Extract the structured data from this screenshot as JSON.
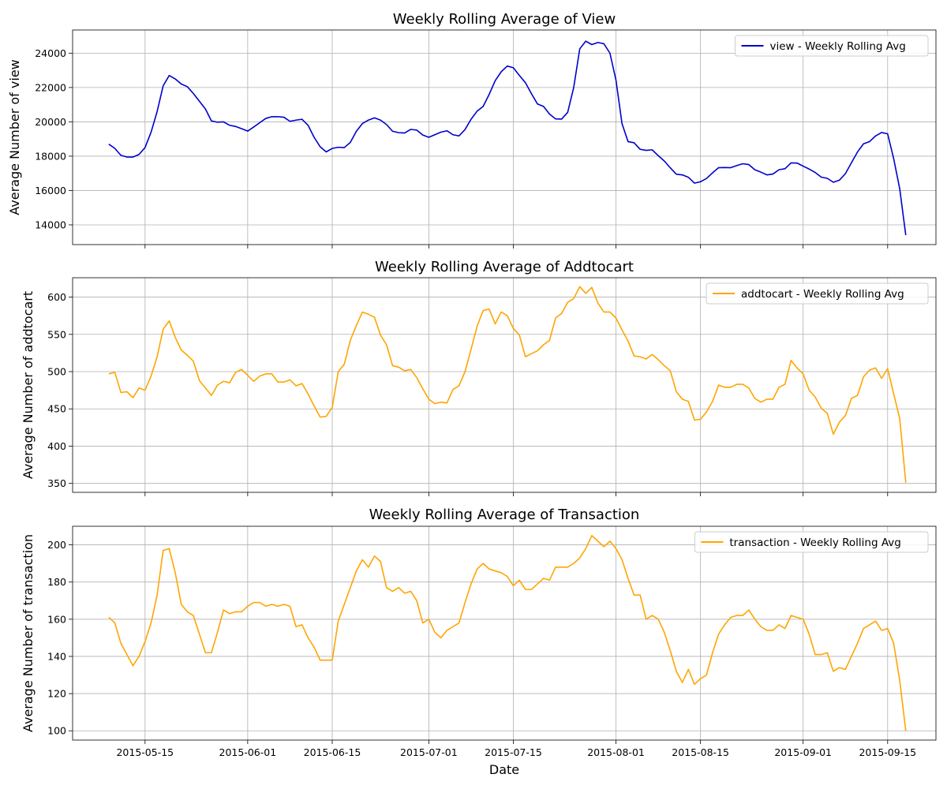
{
  "chart_data": [
    {
      "type": "line",
      "title": "Weekly Rolling Average of View",
      "xlabel": "",
      "ylabel": "Average Number of view",
      "xlim": [
        "2015-05-03",
        "2015-09-23"
      ],
      "ylim": [
        12850,
        25350
      ],
      "yticks": [
        14000,
        16000,
        18000,
        20000,
        22000,
        24000
      ],
      "grid": true,
      "legend_position": "top-right",
      "series": [
        {
          "name": "view - Weekly Rolling Avg",
          "color": "#0000cd",
          "start_date": "2015-05-09",
          "values": [
            18700,
            18450,
            18050,
            17950,
            17950,
            18100,
            18500,
            19400,
            20600,
            22100,
            22700,
            22500,
            22200,
            22050,
            21650,
            21200,
            20750,
            20050,
            19980,
            20000,
            19800,
            19730,
            19600,
            19460,
            19700,
            19950,
            20200,
            20300,
            20300,
            20270,
            20030,
            20100,
            20150,
            19800,
            19100,
            18550,
            18250,
            18450,
            18520,
            18500,
            18800,
            19450,
            19900,
            20100,
            20230,
            20100,
            19840,
            19450,
            19370,
            19350,
            19560,
            19520,
            19230,
            19100,
            19250,
            19400,
            19480,
            19250,
            19180,
            19550,
            20150,
            20620,
            20900,
            21600,
            22400,
            22920,
            23250,
            23150,
            22700,
            22280,
            21640,
            21040,
            20900,
            20450,
            20170,
            20160,
            20550,
            22000,
            24250,
            24700,
            24500,
            24620,
            24550,
            24000,
            22430,
            19900,
            18850,
            18780,
            18400,
            18340,
            18370,
            18030,
            17720,
            17320,
            16950,
            16910,
            16770,
            16430,
            16510,
            16700,
            17030,
            17330,
            17340,
            17330,
            17450,
            17560,
            17510,
            17210,
            17070,
            16910,
            16960,
            17210,
            17270,
            17610,
            17600,
            17420,
            17250,
            17050,
            16780,
            16710,
            16480,
            16600,
            16980,
            17620,
            18240,
            18720,
            18850,
            19180,
            19380,
            19300,
            17850,
            16100,
            13400
          ]
        }
      ]
    },
    {
      "type": "line",
      "title": "Weekly Rolling Average of Addtocart",
      "xlabel": "",
      "ylabel": "Average Number of addtocart",
      "xlim": [
        "2015-05-03",
        "2015-09-23"
      ],
      "ylim": [
        338,
        626
      ],
      "yticks": [
        350,
        400,
        450,
        500,
        550,
        600
      ],
      "grid": true,
      "legend_position": "top-right",
      "series": [
        {
          "name": "addtocart - Weekly Rolling Avg",
          "color": "#ffa500",
          "start_date": "2015-05-09",
          "values": [
            497,
            499,
            472,
            473,
            465,
            478,
            475,
            494,
            520,
            557,
            568,
            546,
            529,
            522,
            514,
            488,
            478,
            468,
            482,
            487,
            485,
            499,
            503,
            495,
            487,
            494,
            497,
            497,
            486,
            486,
            489,
            481,
            484,
            470,
            454,
            439,
            440,
            452,
            500,
            510,
            542,
            562,
            580,
            577,
            573,
            549,
            536,
            508,
            506,
            501,
            503,
            492,
            477,
            463,
            457,
            459,
            458,
            476,
            481,
            500,
            530,
            561,
            582,
            584,
            564,
            580,
            575,
            558,
            549,
            520,
            524,
            528,
            536,
            542,
            572,
            578,
            593,
            598,
            614,
            605,
            613,
            592,
            580,
            580,
            572,
            556,
            541,
            521,
            520,
            517,
            523,
            516,
            508,
            501,
            473,
            463,
            460,
            435,
            436,
            446,
            460,
            482,
            479,
            479,
            483,
            483,
            478,
            464,
            459,
            463,
            463,
            479,
            483,
            515,
            505,
            497,
            475,
            466,
            451,
            444,
            416,
            432,
            441,
            464,
            468,
            493,
            502,
            505,
            491,
            504,
            470,
            437,
            351
          ]
        }
      ]
    },
    {
      "type": "line",
      "title": "Weekly Rolling Average of Transaction",
      "xlabel": "Date",
      "ylabel": "Average Number of transaction",
      "xlim": [
        "2015-05-03",
        "2015-09-23"
      ],
      "ylim": [
        95,
        210
      ],
      "yticks": [
        100,
        120,
        140,
        160,
        180,
        200
      ],
      "grid": true,
      "legend_position": "top-right",
      "series": [
        {
          "name": "transaction - Weekly Rolling Avg",
          "color": "#ffa500",
          "start_date": "2015-05-09",
          "values": [
            161,
            158,
            147,
            141,
            135,
            140,
            148,
            158,
            173,
            197,
            198,
            185,
            168,
            164,
            162,
            152,
            142,
            142,
            153,
            165,
            163,
            164,
            164,
            167,
            169,
            169,
            167,
            168,
            167,
            168,
            167,
            156,
            157,
            150,
            145,
            138,
            138,
            138,
            159,
            168,
            177,
            186,
            192,
            188,
            194,
            191,
            177,
            175,
            177,
            174,
            175,
            170,
            158,
            160,
            153,
            150,
            154,
            156,
            158,
            169,
            179,
            187,
            190,
            187,
            186,
            185,
            183,
            178,
            181,
            176,
            176,
            179,
            182,
            181,
            188,
            188,
            188,
            190,
            193,
            198,
            205,
            202,
            199,
            202,
            198,
            192,
            182,
            173,
            173,
            160,
            162,
            160,
            153,
            143,
            132,
            126,
            133,
            125,
            128,
            130,
            142,
            152,
            157,
            161,
            162,
            162,
            165,
            160,
            156,
            154,
            154,
            157,
            155,
            162,
            161,
            160,
            152,
            141,
            141,
            142,
            132,
            134,
            133,
            140,
            147,
            155,
            157,
            159,
            154,
            155,
            147,
            127,
            100
          ]
        }
      ]
    }
  ],
  "xticks": [
    "2015-05-15",
    "2015-06-01",
    "2015-06-15",
    "2015-07-01",
    "2015-07-15",
    "2015-08-01",
    "2015-08-15",
    "2015-09-01",
    "2015-09-15"
  ]
}
